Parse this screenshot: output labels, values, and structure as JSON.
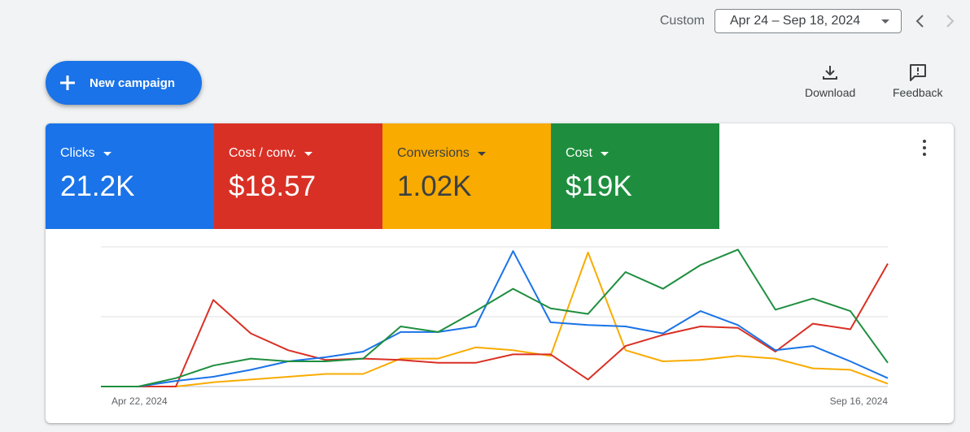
{
  "date_range": {
    "preset": "Custom",
    "value": "Apr 24 – Sep 18, 2024"
  },
  "actions": {
    "new_campaign": "New campaign",
    "download": "Download",
    "feedback": "Feedback"
  },
  "metrics": [
    {
      "label": "Clicks",
      "value": "21.2K",
      "color": "#1a73e8",
      "text_color": "#ffffff"
    },
    {
      "label": "Cost / conv.",
      "value": "$18.57",
      "color": "#d93025",
      "text_color": "#ffffff"
    },
    {
      "label": "Conversions",
      "value": "1.02K",
      "color": "#f9ab00",
      "text_color": "#3c4043"
    },
    {
      "label": "Cost",
      "value": "$19K",
      "color": "#1e8e3e",
      "text_color": "#ffffff"
    }
  ],
  "chart_data": {
    "type": "line",
    "x_start_label": "Apr 22, 2024",
    "x_end_label": "Sep 16, 2024",
    "grid": true,
    "ylim": [
      0,
      100
    ],
    "series": [
      {
        "color": "#1a73e8",
        "values": [
          0,
          0,
          4,
          7,
          12,
          18,
          21,
          25,
          39,
          39,
          43,
          97,
          46,
          44,
          43,
          38,
          54,
          44,
          26,
          29,
          18,
          6
        ]
      },
      {
        "color": "#d93025",
        "values": [
          0,
          0,
          0,
          62,
          38,
          26,
          19,
          20,
          19,
          17,
          17,
          23,
          23,
          5,
          29,
          37,
          43,
          42,
          25,
          45,
          41,
          88
        ]
      },
      {
        "color": "#f9ab00",
        "values": [
          0,
          0,
          0,
          3,
          5,
          7,
          9,
          9,
          20,
          20,
          28,
          26,
          22,
          96,
          26,
          18,
          19,
          22,
          20,
          13,
          12,
          2
        ]
      },
      {
        "color": "#1e8e3e",
        "values": [
          0,
          0,
          6,
          15,
          20,
          18,
          18,
          20,
          43,
          39,
          54,
          70,
          56,
          52,
          82,
          70,
          87,
          98,
          55,
          63,
          54,
          17
        ]
      }
    ]
  }
}
